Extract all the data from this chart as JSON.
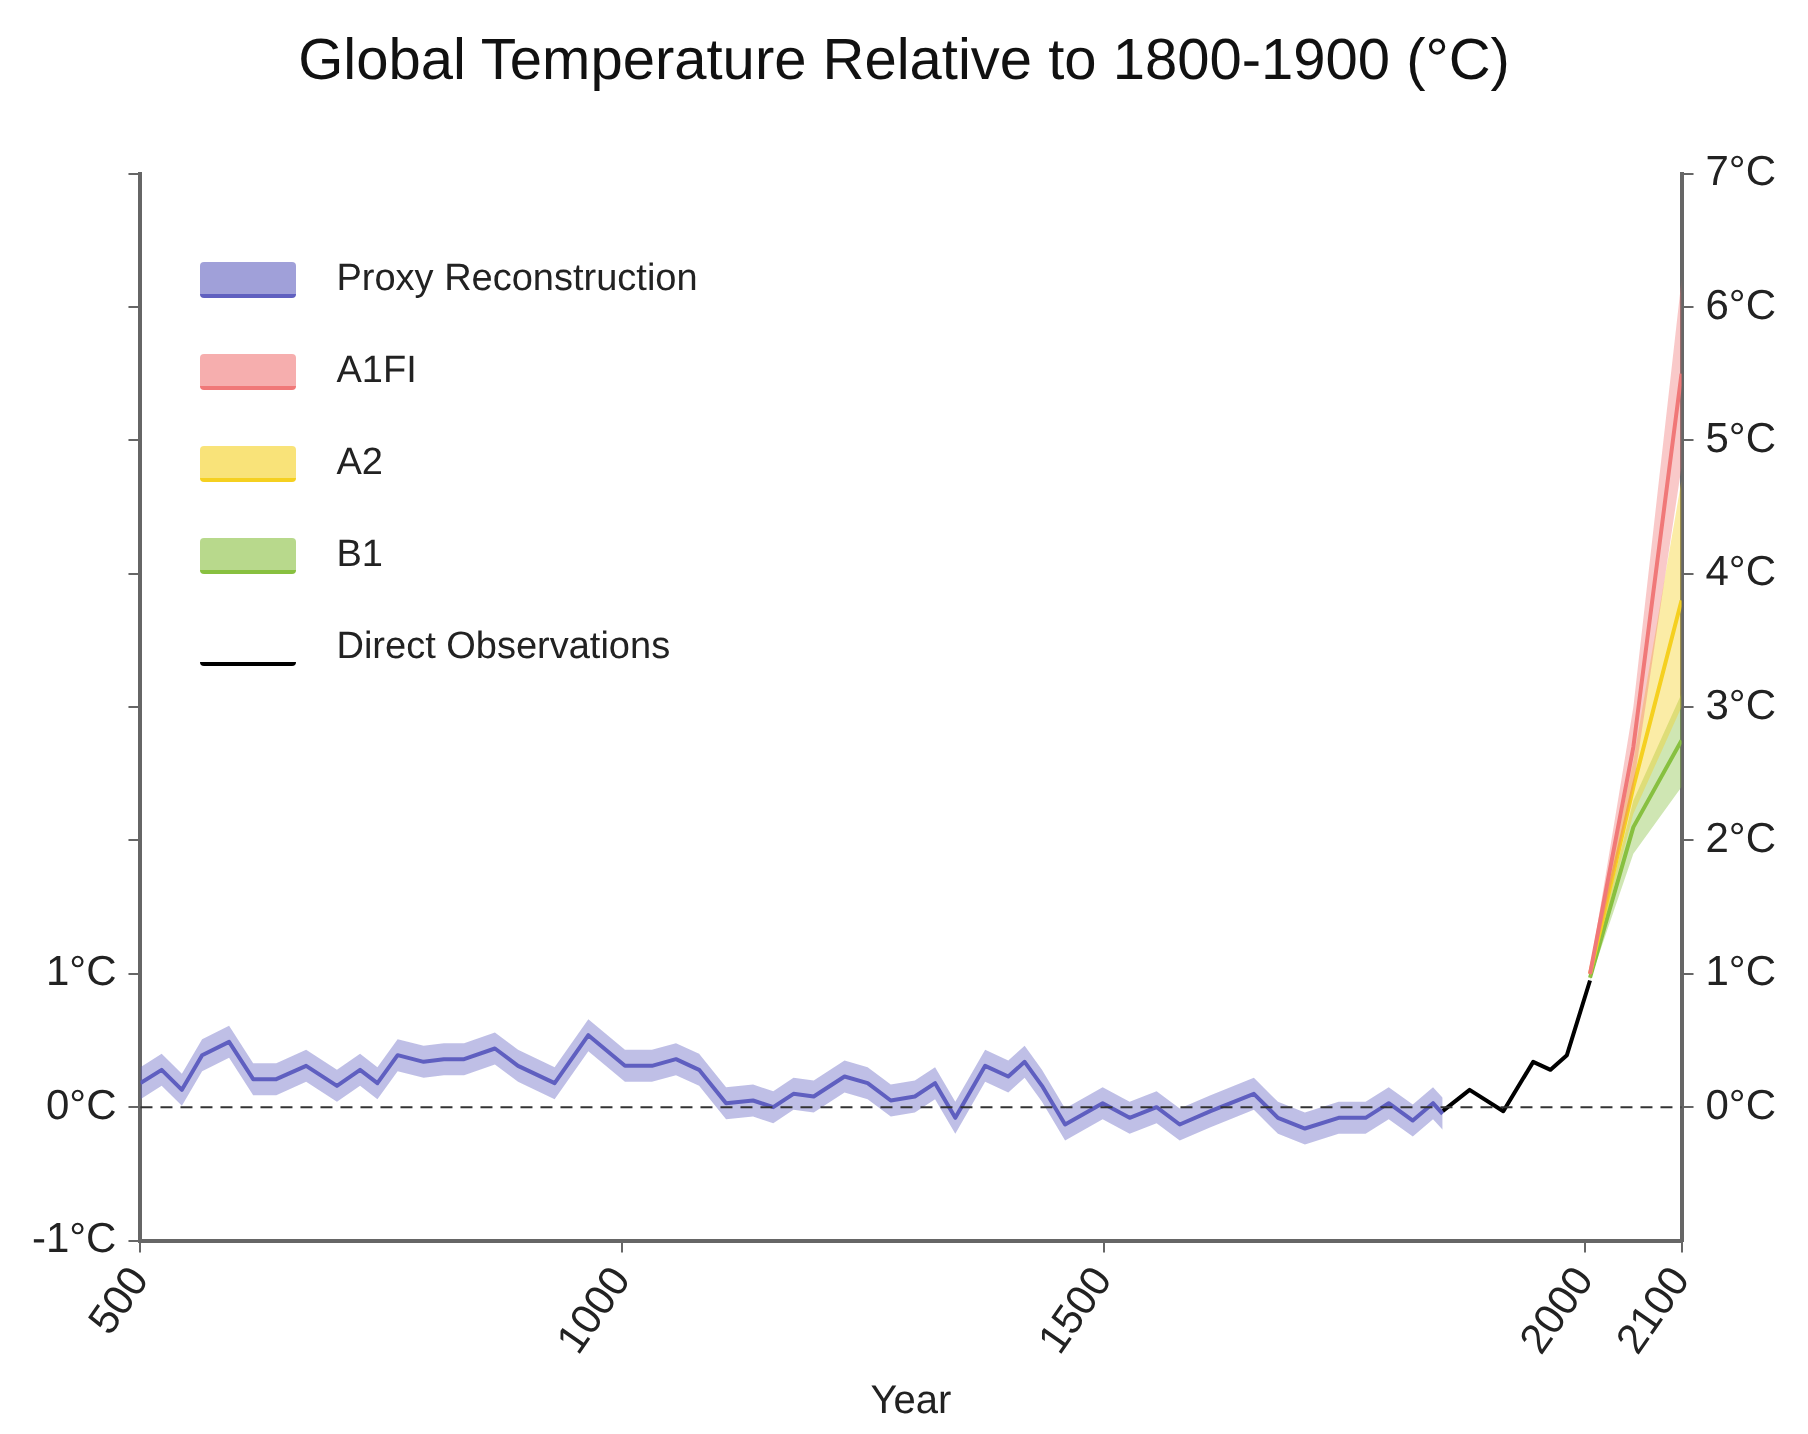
{
  "chart_data": {
    "type": "line",
    "title": "Global Temperature Relative to 1800-1900 (°C)",
    "xlabel": "Year",
    "xlim": [
      500,
      2100
    ],
    "xticks": [
      500,
      1000,
      1500,
      2000,
      2100
    ],
    "ylim": [
      -1,
      7
    ],
    "yticks": [
      {
        "value": -1,
        "label": "-1°C"
      },
      {
        "value": 0,
        "label": "0°C"
      },
      {
        "value": 1,
        "label": "1°C"
      },
      {
        "value": 2,
        "label": null
      },
      {
        "value": 3,
        "label": null
      },
      {
        "value": 4,
        "label": null
      },
      {
        "value": 5,
        "label": null
      },
      {
        "value": 6,
        "label": null
      },
      {
        "value": 7,
        "label": null
      }
    ],
    "y2lim": [
      -1,
      7
    ],
    "y2ticks": [
      {
        "value": 0,
        "label": "0°C"
      },
      {
        "value": 1,
        "label": "1°C"
      },
      {
        "value": 2,
        "label": "2°C"
      },
      {
        "value": 3,
        "label": "3°C"
      },
      {
        "value": 4,
        "label": "4°C"
      },
      {
        "value": 5,
        "label": "5°C"
      },
      {
        "value": 6,
        "label": "6°C"
      },
      {
        "value": 7,
        "label": "7°C"
      }
    ],
    "grid": false,
    "legend": "top left",
    "ref_lines": [
      {
        "axis": "y",
        "value": 0,
        "color": "#333333",
        "line_style": "dashed"
      }
    ],
    "series": [
      {
        "name": "Proxy Reconstruction",
        "color": "#6060c0",
        "x": [
          500,
          522,
          543,
          564,
          592,
          617,
          641,
          672,
          704,
          728,
          746,
          767,
          794,
          815,
          836,
          868,
          892,
          930,
          965,
          1003,
          1031,
          1056,
          1080,
          1108,
          1136,
          1157,
          1178,
          1199,
          1231,
          1255,
          1279,
          1304,
          1325,
          1346,
          1377,
          1401,
          1418,
          1436,
          1460,
          1499,
          1527,
          1555,
          1579,
          1611,
          1656,
          1681,
          1709,
          1744,
          1772,
          1796,
          1821,
          1842,
          1852
        ],
        "values": [
          0.18,
          0.28,
          0.13,
          0.39,
          0.49,
          0.21,
          0.21,
          0.31,
          0.16,
          0.28,
          0.18,
          0.39,
          0.34,
          0.36,
          0.36,
          0.44,
          0.31,
          0.18,
          0.54,
          0.31,
          0.31,
          0.36,
          0.28,
          0.03,
          0.05,
          0,
          0.1,
          0.08,
          0.23,
          0.18,
          0.05,
          0.08,
          0.18,
          -0.08,
          0.31,
          0.23,
          0.34,
          0.16,
          -0.13,
          0.03,
          -0.08,
          0,
          -0.13,
          -0.03,
          0.1,
          -0.08,
          -0.16,
          -0.08,
          -0.08,
          0.03,
          -0.1,
          0.03,
          -0.05
        ],
        "lower": [
          0.06,
          0.16,
          0.01,
          0.27,
          0.37,
          0.09,
          0.09,
          0.19,
          0.04,
          0.16,
          0.06,
          0.27,
          0.22,
          0.24,
          0.24,
          0.32,
          0.19,
          0.06,
          0.42,
          0.19,
          0.19,
          0.24,
          0.16,
          -0.09,
          -0.07,
          -0.12,
          -0.02,
          -0.04,
          0.11,
          0.06,
          -0.07,
          -0.04,
          0.06,
          -0.2,
          0.19,
          0.11,
          0.22,
          0.04,
          -0.25,
          -0.09,
          -0.2,
          -0.12,
          -0.25,
          -0.15,
          -0.02,
          -0.2,
          -0.28,
          -0.2,
          -0.2,
          -0.09,
          -0.22,
          -0.09,
          -0.17
        ],
        "upper": [
          0.3,
          0.4,
          0.25,
          0.51,
          0.61,
          0.33,
          0.33,
          0.43,
          0.28,
          0.4,
          0.3,
          0.51,
          0.46,
          0.48,
          0.48,
          0.56,
          0.43,
          0.3,
          0.66,
          0.43,
          0.43,
          0.48,
          0.4,
          0.15,
          0.17,
          0.12,
          0.22,
          0.2,
          0.35,
          0.3,
          0.17,
          0.2,
          0.3,
          0.04,
          0.43,
          0.35,
          0.46,
          0.28,
          -0.01,
          0.15,
          0.04,
          0.12,
          -0.01,
          0.09,
          0.22,
          0.04,
          -0.04,
          0.04,
          0.04,
          0.15,
          0.02,
          0.15,
          0.07
        ]
      },
      {
        "name": "A1FI",
        "color": "#f07878",
        "x": [
          2005,
          2050,
          2100
        ],
        "values": [
          1,
          2.7,
          5.5
        ],
        "lower": [
          0.97,
          2.4,
          4.8
        ],
        "upper": [
          1.03,
          3.0,
          6.2
        ]
      },
      {
        "name": "A2",
        "color": "#f5d020",
        "x": [
          2005,
          2050,
          2100
        ],
        "values": [
          1,
          2.4,
          3.8
        ],
        "lower": [
          0.97,
          2.2,
          3.0
        ],
        "upper": [
          1.03,
          2.6,
          4.7
        ]
      },
      {
        "name": "B1",
        "color": "#88c040",
        "x": [
          2005,
          2050,
          2100
        ],
        "values": [
          0.97,
          2.1,
          2.75
        ],
        "lower": [
          0.95,
          1.9,
          2.4
        ],
        "upper": [
          1.0,
          2.3,
          3.1
        ]
      },
      {
        "name": "Direct Observations",
        "color": "#000000",
        "x": [
          1852,
          1880,
          1915,
          1946,
          1964,
          1981,
          2005
        ],
        "values": [
          -0.03,
          0.13,
          -0.03,
          0.34,
          0.28,
          0.39,
          0.95
        ]
      }
    ]
  }
}
